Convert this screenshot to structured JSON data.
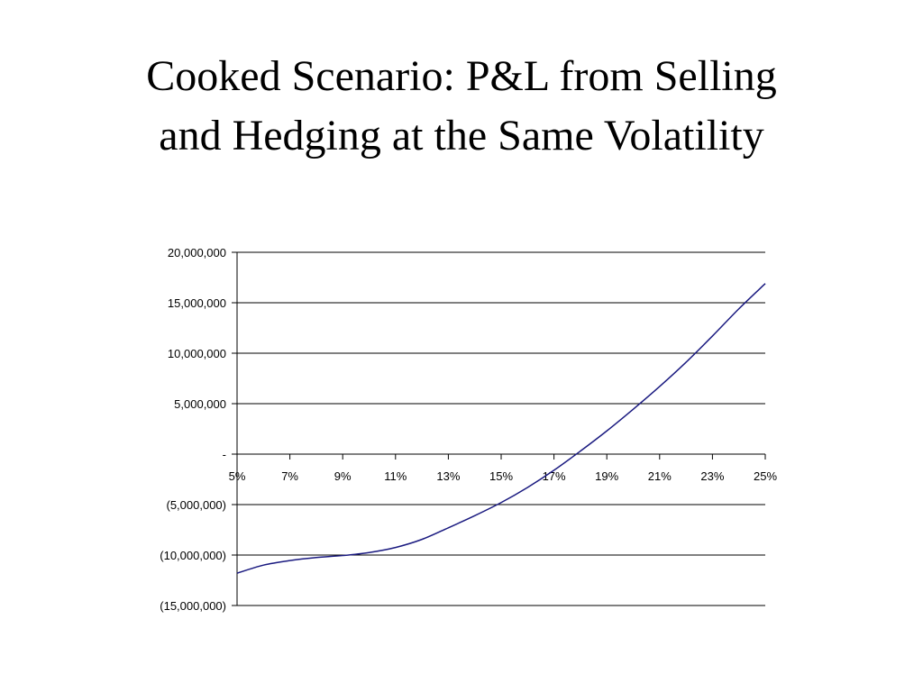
{
  "title_lines": [
    "Cooked Scenario: P&L from Selling",
    "and Hedging at the Same Volatility"
  ],
  "chart_data": {
    "type": "line",
    "title": "",
    "xlabel": "",
    "ylabel": "",
    "x_ticks": [
      "5%",
      "7%",
      "9%",
      "11%",
      "13%",
      "15%",
      "17%",
      "19%",
      "21%",
      "23%",
      "25%"
    ],
    "y_ticks": [
      {
        "value": 20000000,
        "label": "20,000,000"
      },
      {
        "value": 15000000,
        "label": "15,000,000"
      },
      {
        "value": 10000000,
        "label": "10,000,000"
      },
      {
        "value": 5000000,
        "label": "5,000,000"
      },
      {
        "value": 0,
        "label": "-"
      },
      {
        "value": -5000000,
        "label": "(5,000,000)"
      },
      {
        "value": -10000000,
        "label": "(10,000,000)"
      },
      {
        "value": -15000000,
        "label": "(15,000,000)"
      }
    ],
    "xlim": [
      5,
      25
    ],
    "ylim": [
      -15000000,
      20000000
    ],
    "grid": "horizontal",
    "legend": "none",
    "series": [
      {
        "color": "#1a1a80",
        "x": [
          5,
          6,
          7,
          8,
          9,
          10,
          11,
          12,
          13,
          14,
          15,
          16,
          17,
          18,
          19,
          20,
          21,
          22,
          23,
          24,
          25
        ],
        "y": [
          -11800000,
          -11000000,
          -10550000,
          -10250000,
          -10050000,
          -9750000,
          -9250000,
          -8450000,
          -7300000,
          -6100000,
          -4800000,
          -3300000,
          -1600000,
          300000,
          2300000,
          4450000,
          6700000,
          9100000,
          11700000,
          14400000,
          16900000
        ]
      }
    ]
  }
}
